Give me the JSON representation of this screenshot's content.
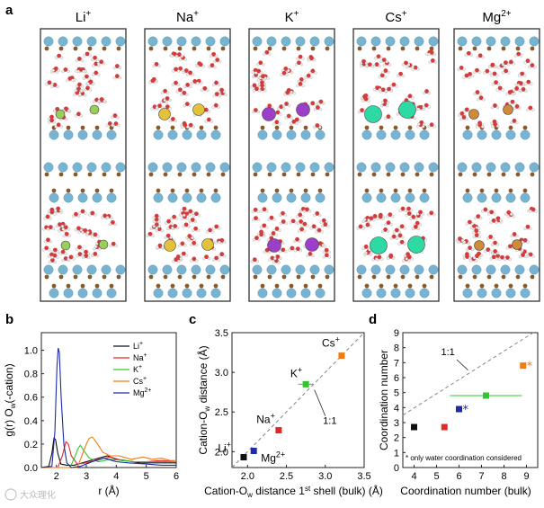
{
  "panel_letters": {
    "a": "a",
    "b": "b",
    "c": "c",
    "d": "d"
  },
  "panel_a": {
    "columns": [
      {
        "label": "Li",
        "sup": "+",
        "cation_color": "#9acd5a"
      },
      {
        "label": "Na",
        "sup": "+",
        "cation_color": "#e3c23a"
      },
      {
        "label": "K",
        "sup": "+",
        "cation_color": "#9b3fc9"
      },
      {
        "label": "Cs",
        "sup": "+",
        "cation_color": "#2fd9a4"
      },
      {
        "label": "Mg",
        "sup": "2+",
        "cation_color": "#cf8a3a"
      }
    ],
    "colors": {
      "oxygen_surface": "#78b4d2",
      "aluminum": "#8a5a2b",
      "water_o": "#d23c3c",
      "water_h": "#f2eded"
    }
  },
  "watermark": {
    "text": "大众理化"
  },
  "chart_data": [
    {
      "id": "b",
      "type": "line",
      "xlabel": "r (Å)",
      "ylabel_parts": [
        "g(r) O",
        "w",
        "(-cation)"
      ],
      "xlim": [
        1.5,
        6
      ],
      "ylim": [
        0,
        1.15
      ],
      "xticks": [
        2,
        3,
        4,
        5,
        6
      ],
      "yticks": [
        0.0,
        0.2,
        0.4,
        0.6,
        0.8,
        1.0
      ],
      "ytick_labels": [
        "0.0",
        "0.2",
        "0.4",
        "0.6",
        "0.8",
        "1.0"
      ],
      "legend_position": "top-right",
      "series": [
        {
          "name": "Li",
          "sup": "+",
          "color": "#111111",
          "x": [
            1.5,
            1.75,
            1.85,
            1.92,
            1.97,
            2.05,
            2.15,
            2.35,
            2.6,
            3.0,
            3.4,
            3.7,
            4.0,
            4.3,
            4.8,
            5.3,
            6.0
          ],
          "y": [
            0,
            0.01,
            0.12,
            0.25,
            0.24,
            0.12,
            0.03,
            0.02,
            0.02,
            0.05,
            0.08,
            0.1,
            0.07,
            0.06,
            0.04,
            0.04,
            0.04
          ]
        },
        {
          "name": "Na",
          "sup": "+",
          "color": "#e02a2a",
          "x": [
            1.5,
            2.05,
            2.2,
            2.32,
            2.4,
            2.5,
            2.7,
            3.0,
            3.4,
            3.8,
            4.2,
            4.6,
            5.0,
            5.5,
            6.0
          ],
          "y": [
            0,
            0.0,
            0.1,
            0.22,
            0.2,
            0.1,
            0.03,
            0.04,
            0.07,
            0.09,
            0.06,
            0.05,
            0.05,
            0.06,
            0.05
          ]
        },
        {
          "name": "K",
          "sup": "+",
          "color": "#2ec82e",
          "x": [
            1.5,
            2.45,
            2.6,
            2.72,
            2.8,
            2.9,
            3.1,
            3.4,
            3.8,
            4.2,
            4.6,
            5.0,
            5.5,
            6.0
          ],
          "y": [
            0,
            0.0,
            0.08,
            0.16,
            0.19,
            0.15,
            0.08,
            0.05,
            0.07,
            0.06,
            0.05,
            0.05,
            0.05,
            0.05
          ]
        },
        {
          "name": "Cs",
          "sup": "+",
          "color": "#f07b10",
          "x": [
            1.5,
            2.7,
            2.85,
            3.0,
            3.1,
            3.2,
            3.35,
            3.55,
            3.8,
            4.1,
            4.5,
            4.9,
            5.2,
            5.5,
            5.8,
            6.0
          ],
          "y": [
            0,
            0.0,
            0.1,
            0.2,
            0.25,
            0.26,
            0.21,
            0.13,
            0.1,
            0.1,
            0.07,
            0.09,
            0.07,
            0.08,
            0.06,
            0.06
          ]
        },
        {
          "name": "Mg",
          "sup": "2+",
          "color": "#1e2aa8",
          "x": [
            1.5,
            1.85,
            1.95,
            2.02,
            2.06,
            2.1,
            2.16,
            2.25,
            2.35,
            2.5,
            2.8,
            3.2,
            3.6,
            4.0,
            4.4,
            5.0,
            5.5,
            6.0
          ],
          "y": [
            0,
            0.01,
            0.3,
            0.85,
            1.02,
            0.98,
            0.6,
            0.2,
            0.04,
            0.0,
            0.01,
            0.05,
            0.08,
            0.05,
            0.04,
            0.03,
            0.02,
            0.02
          ]
        }
      ]
    },
    {
      "id": "c",
      "type": "scatter",
      "xlabel_parts": [
        "Cation-O",
        "w",
        " distance 1",
        "st",
        " shell (bulk) (Å)"
      ],
      "ylabel_parts": [
        "Cation-O",
        "w",
        " distance (Å)"
      ],
      "xlim": [
        1.8,
        3.5
      ],
      "ylim": [
        1.8,
        3.5
      ],
      "xticks": [
        2.0,
        2.5,
        3.0,
        3.5
      ],
      "yticks": [
        2.0,
        2.5,
        3.0,
        3.5
      ],
      "tick_labels_x": [
        "2.0",
        "2.5",
        "3.0",
        "3.5"
      ],
      "tick_labels_y": [
        "2.0",
        "2.5",
        "3.0",
        "3.5"
      ],
      "diagonal_label": "1:1",
      "points": [
        {
          "name": "Li",
          "sup": "+",
          "x": 1.95,
          "y": 1.93,
          "color": "#111111"
        },
        {
          "name": "Mg",
          "sup": "2+",
          "x": 2.08,
          "y": 2.01,
          "color": "#1e2aa8"
        },
        {
          "name": "Na",
          "sup": "+",
          "x": 2.4,
          "y": 2.27,
          "color": "#e02a2a"
        },
        {
          "name": "K",
          "sup": "+",
          "x": 2.75,
          "y": 2.85,
          "color": "#2ec82e",
          "xerr": 0.1
        },
        {
          "name": "Cs",
          "sup": "+",
          "x": 3.21,
          "y": 3.21,
          "color": "#f07b10"
        }
      ]
    },
    {
      "id": "d",
      "type": "scatter",
      "xlabel": "Coordination number (bulk)",
      "ylabel": "Coordination number",
      "xlim": [
        3.5,
        9.5
      ],
      "ylim": [
        0,
        9
      ],
      "xticks": [
        4,
        5,
        6,
        7,
        8,
        9
      ],
      "yticks": [
        0,
        1,
        2,
        3,
        4,
        5,
        6,
        7,
        8,
        9
      ],
      "diagonal_label": "1:1",
      "note": "* only water coordination considered",
      "points": [
        {
          "name": "Li",
          "x": 4.0,
          "y": 2.7,
          "color": "#111111"
        },
        {
          "name": "Na",
          "x": 5.35,
          "y": 2.7,
          "color": "#e02a2a"
        },
        {
          "name": "Mg",
          "x": 6.0,
          "y": 3.9,
          "color": "#1e2aa8",
          "star": true
        },
        {
          "name": "K",
          "x": 7.2,
          "y": 4.8,
          "color": "#2ec82e",
          "xerr": 1.6
        },
        {
          "name": "Cs",
          "x": 8.85,
          "y": 6.8,
          "color": "#f07b10",
          "star": true
        }
      ]
    }
  ]
}
